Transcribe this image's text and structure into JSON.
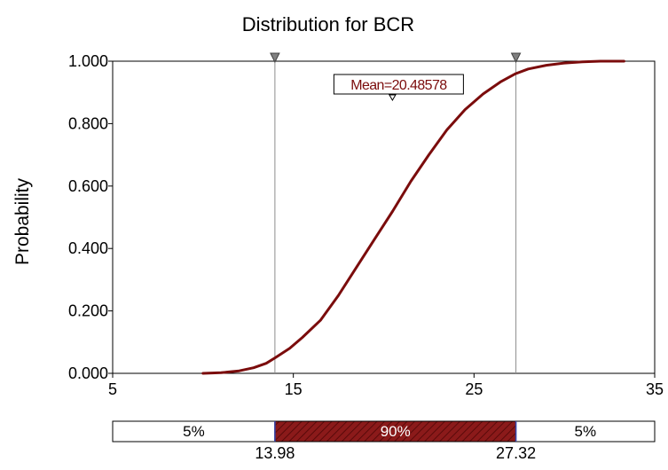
{
  "chart_data": {
    "type": "line",
    "title": "Distribution for BCR",
    "xlabel": "",
    "ylabel": "Probability",
    "xlim": [
      5,
      35
    ],
    "ylim": [
      0,
      1
    ],
    "x_ticks": [
      "5",
      "15",
      "25",
      "35"
    ],
    "y_ticks": [
      "0.000",
      "0.200",
      "0.400",
      "0.600",
      "0.800",
      "1.000"
    ],
    "grid": false,
    "series": [
      {
        "color": "#7b0c0c",
        "x": [
          10,
          11,
          12,
          12.8,
          13.5,
          14,
          14.8,
          15.5,
          16.5,
          17.5,
          18.5,
          19.5,
          20.5,
          21.5,
          22.5,
          23.5,
          24.5,
          25.5,
          26.5,
          27.3,
          28,
          29,
          30,
          31,
          32,
          33.3
        ],
        "y": [
          0,
          0.002,
          0.008,
          0.018,
          0.032,
          0.05,
          0.08,
          0.115,
          0.17,
          0.25,
          0.34,
          0.43,
          0.52,
          0.615,
          0.7,
          0.78,
          0.845,
          0.895,
          0.935,
          0.96,
          0.975,
          0.987,
          0.994,
          0.998,
          1.0,
          1.0
        ]
      }
    ],
    "markers": [
      {
        "x": 13.98,
        "label": "13.98"
      },
      {
        "x": 27.32,
        "label": "27.32"
      }
    ],
    "mean": {
      "value": 20.48578,
      "label": "Mean=20.48578"
    },
    "bands": [
      {
        "label": "5%",
        "from": 5,
        "to": 13.98
      },
      {
        "label": "90%",
        "from": 13.98,
        "to": 27.32
      },
      {
        "label": "5%",
        "from": 27.32,
        "to": 35
      }
    ],
    "colors": {
      "curve": "#7b0c0c",
      "band_fill": "#8b1a1a",
      "marker": "#8c8c8c"
    }
  }
}
